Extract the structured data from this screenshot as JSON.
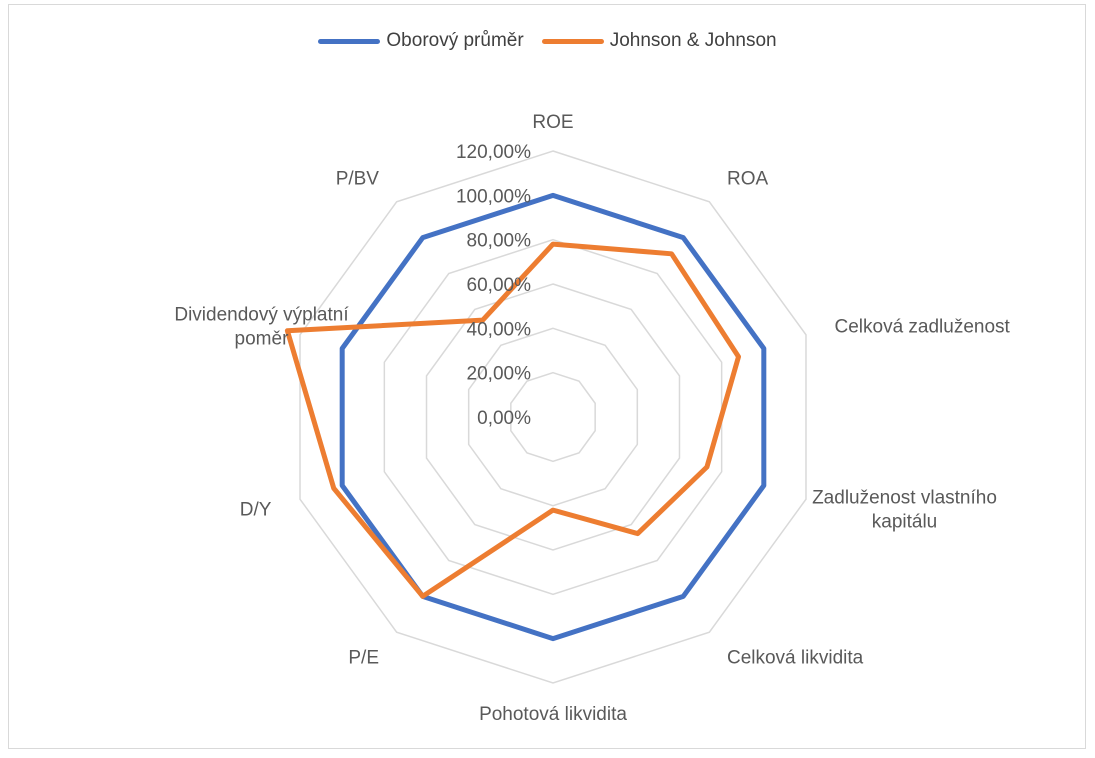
{
  "chart_data": {
    "type": "radar",
    "categories": [
      "ROE",
      "ROA",
      "Celková zadluženost",
      "Zadluženost vlastního kapitálu",
      "Celková likvidita",
      "Pohotová likvidita",
      "P/E",
      "D/Y",
      "Dividendový výplatní poměr",
      "P/BV"
    ],
    "series": [
      {
        "name": "Oborový průměr",
        "color": "#4472C4",
        "values": [
          100,
          100,
          100,
          100,
          100,
          100,
          100,
          100,
          100,
          100
        ]
      },
      {
        "name": "Johnson & Johnson",
        "color": "#ED7D31",
        "values": [
          78,
          91,
          88,
          73,
          65,
          42,
          100,
          104,
          126,
          54
        ]
      }
    ],
    "ticks": [
      "0,00%",
      "20,00%",
      "40,00%",
      "60,00%",
      "80,00%",
      "100,00%",
      "120,00%"
    ],
    "rmin": 0,
    "rmax": 120,
    "gridlines": true,
    "legend_position": "top"
  }
}
